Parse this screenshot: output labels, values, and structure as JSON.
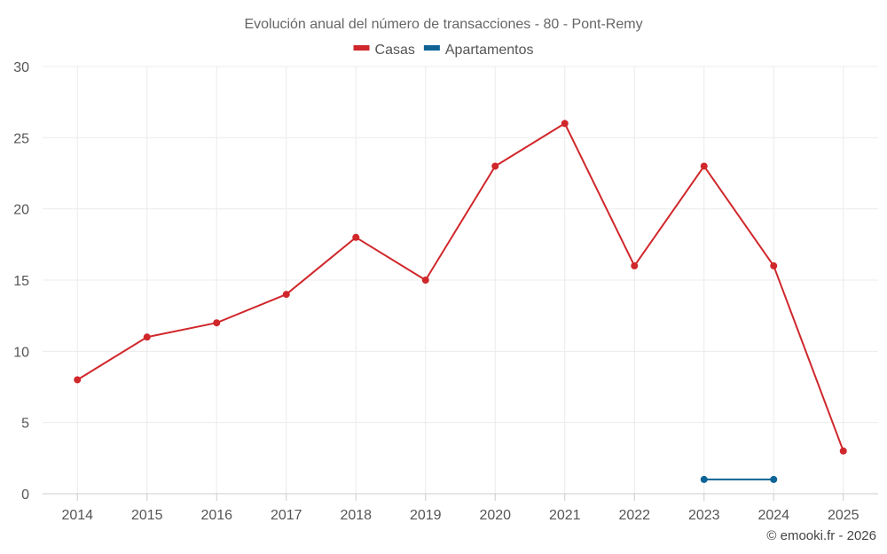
{
  "chart_data": {
    "type": "line",
    "title": "Evolución anual del número de transacciones - 80 - Pont-Remy",
    "categories": [
      "2014",
      "2015",
      "2016",
      "2017",
      "2018",
      "2019",
      "2020",
      "2021",
      "2022",
      "2023",
      "2024",
      "2025"
    ],
    "ylim": [
      0,
      30
    ],
    "yticks": [
      0,
      5,
      10,
      15,
      20,
      25,
      30
    ],
    "grid": true,
    "legend_position": "top-center",
    "series": [
      {
        "name": "Casas",
        "color": "#d0272b",
        "values": [
          8,
          11,
          12,
          14,
          18,
          15,
          23,
          26,
          16,
          23,
          16,
          3
        ]
      },
      {
        "name": "Apartamentos",
        "color": "#0f6496",
        "values": [
          null,
          null,
          null,
          null,
          null,
          null,
          null,
          null,
          null,
          1,
          1,
          null
        ]
      }
    ]
  },
  "credit": "© emooki.fr - 2026"
}
